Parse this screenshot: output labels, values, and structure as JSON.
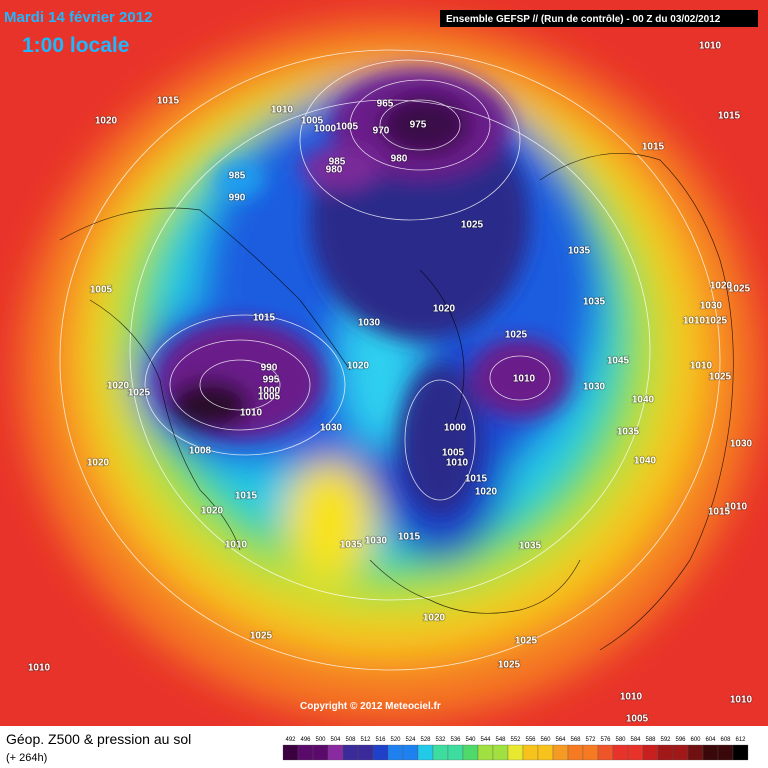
{
  "header": {
    "date": "Mardi 14 février 2012",
    "local_time": "1:00 locale",
    "run": "Ensemble GEFSP // (Run de contrôle)  -  00 Z du 03/02/2012"
  },
  "copyright": "Copyright © 2012 Meteociel.fr",
  "footer": {
    "title": "Géop. Z500 & pression au sol",
    "lead": "(+ 264h)"
  },
  "isobar_labels": [
    "1010",
    "1015",
    "1020",
    "1010",
    "1005",
    "1000",
    "1005",
    "965",
    "970",
    "975",
    "980",
    "985",
    "980",
    "985",
    "990",
    "1015",
    "1015",
    "1025",
    "1035",
    "1005",
    "1035",
    "1020",
    "1015",
    "1030",
    "1025",
    "990",
    "995",
    "1000",
    "1005",
    "1010",
    "1020",
    "1030",
    "1045",
    "1040",
    "1035",
    "1040",
    "1010",
    "1000",
    "1030",
    "1020",
    "1025",
    "1008",
    "1020",
    "1005",
    "1010",
    "1015",
    "1020",
    "1015",
    "1020",
    "1010",
    "1030",
    "1015",
    "1035",
    "1035",
    "1020",
    "1025",
    "1025",
    "1025",
    "1010",
    "1010",
    "1010",
    "1005",
    "1025",
    "1030",
    "1025",
    "1010",
    "1010",
    "1025",
    "1030",
    "1010",
    "1015",
    "1020"
  ],
  "legend": {
    "values": [
      "492",
      "496",
      "500",
      "504",
      "508",
      "512",
      "516",
      "520",
      "524",
      "528",
      "532",
      "536",
      "540",
      "544",
      "548",
      "552",
      "556",
      "560",
      "564",
      "568",
      "572",
      "576",
      "580",
      "584",
      "588",
      "592",
      "596",
      "600",
      "604",
      "608",
      "612"
    ]
  }
}
